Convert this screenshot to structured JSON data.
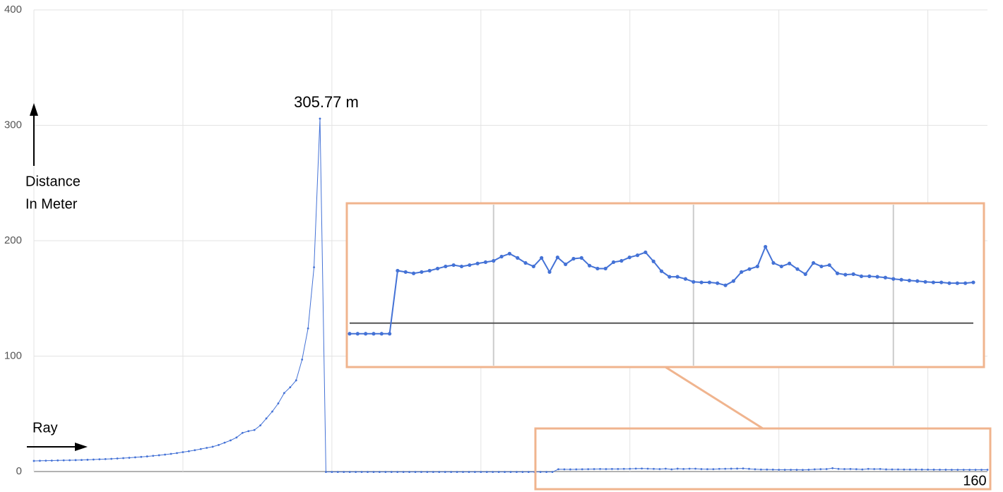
{
  "chart_data": {
    "type": "line",
    "ylabel": [
      "Distance",
      "In Meter"
    ],
    "xlabel": "Ray",
    "peak_label": "305.77 m",
    "xlim": [
      0,
      160
    ],
    "xticks": [
      0,
      25,
      50,
      75,
      100,
      125,
      150
    ],
    "ylim": [
      0,
      400
    ],
    "yticks": [
      0,
      100,
      200,
      300,
      400
    ],
    "grid": true,
    "series": [
      {
        "color": "#4472d6",
        "values": [
          9.2,
          9.3,
          9.4,
          9.5,
          9.6,
          9.7,
          9.8,
          9.9,
          10,
          10.2,
          10.4,
          10.6,
          10.8,
          11,
          11.3,
          11.6,
          11.9,
          12.3,
          12.7,
          13.1,
          13.6,
          14.1,
          14.7,
          15.3,
          16,
          16.8,
          17.6,
          18.5,
          19.5,
          20.5,
          21.5,
          23,
          25,
          27,
          29.5,
          33.5,
          35,
          36,
          40,
          46,
          52,
          59,
          68,
          73,
          79,
          97,
          124,
          177,
          305.77,
          -0.4,
          -0.4,
          -0.4,
          -0.4,
          -0.4,
          -0.4,
          -0.4,
          -0.4,
          -0.4,
          -0.4,
          -0.4,
          -0.4,
          -0.4,
          -0.4,
          -0.4,
          -0.4,
          -0.4,
          -0.4,
          -0.4,
          -0.4,
          -0.4,
          -0.4,
          -0.4,
          -0.4,
          -0.4,
          -0.4,
          -0.4,
          -0.4,
          -0.4,
          -0.4,
          -0.4,
          -0.4,
          -0.4,
          -0.4,
          -0.4,
          -0.4,
          -0.4,
          -0.4,
          -0.4,
          1.97,
          1.92,
          1.87,
          1.92,
          1.97,
          2.05,
          2.13,
          2.18,
          2.13,
          2.18,
          2.24,
          2.29,
          2.34,
          2.5,
          2.61,
          2.45,
          2.26,
          2.13,
          2.45,
          1.92,
          2.47,
          2.21,
          2.42,
          2.45,
          2.16,
          2.05,
          2.05,
          2.29,
          2.34,
          2.47,
          2.55,
          2.66,
          2.32,
          1.95,
          1.74,
          1.74,
          1.66,
          1.55,
          1.53,
          1.53,
          1.5,
          1.42,
          1.58,
          1.92,
          2.03,
          2.13,
          2.87,
          2.26,
          2.13,
          2.24,
          2.03,
          1.84,
          2.26,
          2.13,
          2.18,
          1.87,
          1.82,
          1.84,
          1.76,
          1.76,
          1.74,
          1.71,
          1.66,
          1.63,
          1.6,
          1.58,
          1.55,
          1.53,
          1.53,
          1.5,
          1.5,
          1.5,
          1.53
        ]
      }
    ],
    "inset": {
      "xlim": [
        82,
        160
      ],
      "ylim": [
        -1.6,
        4.45
      ]
    }
  }
}
